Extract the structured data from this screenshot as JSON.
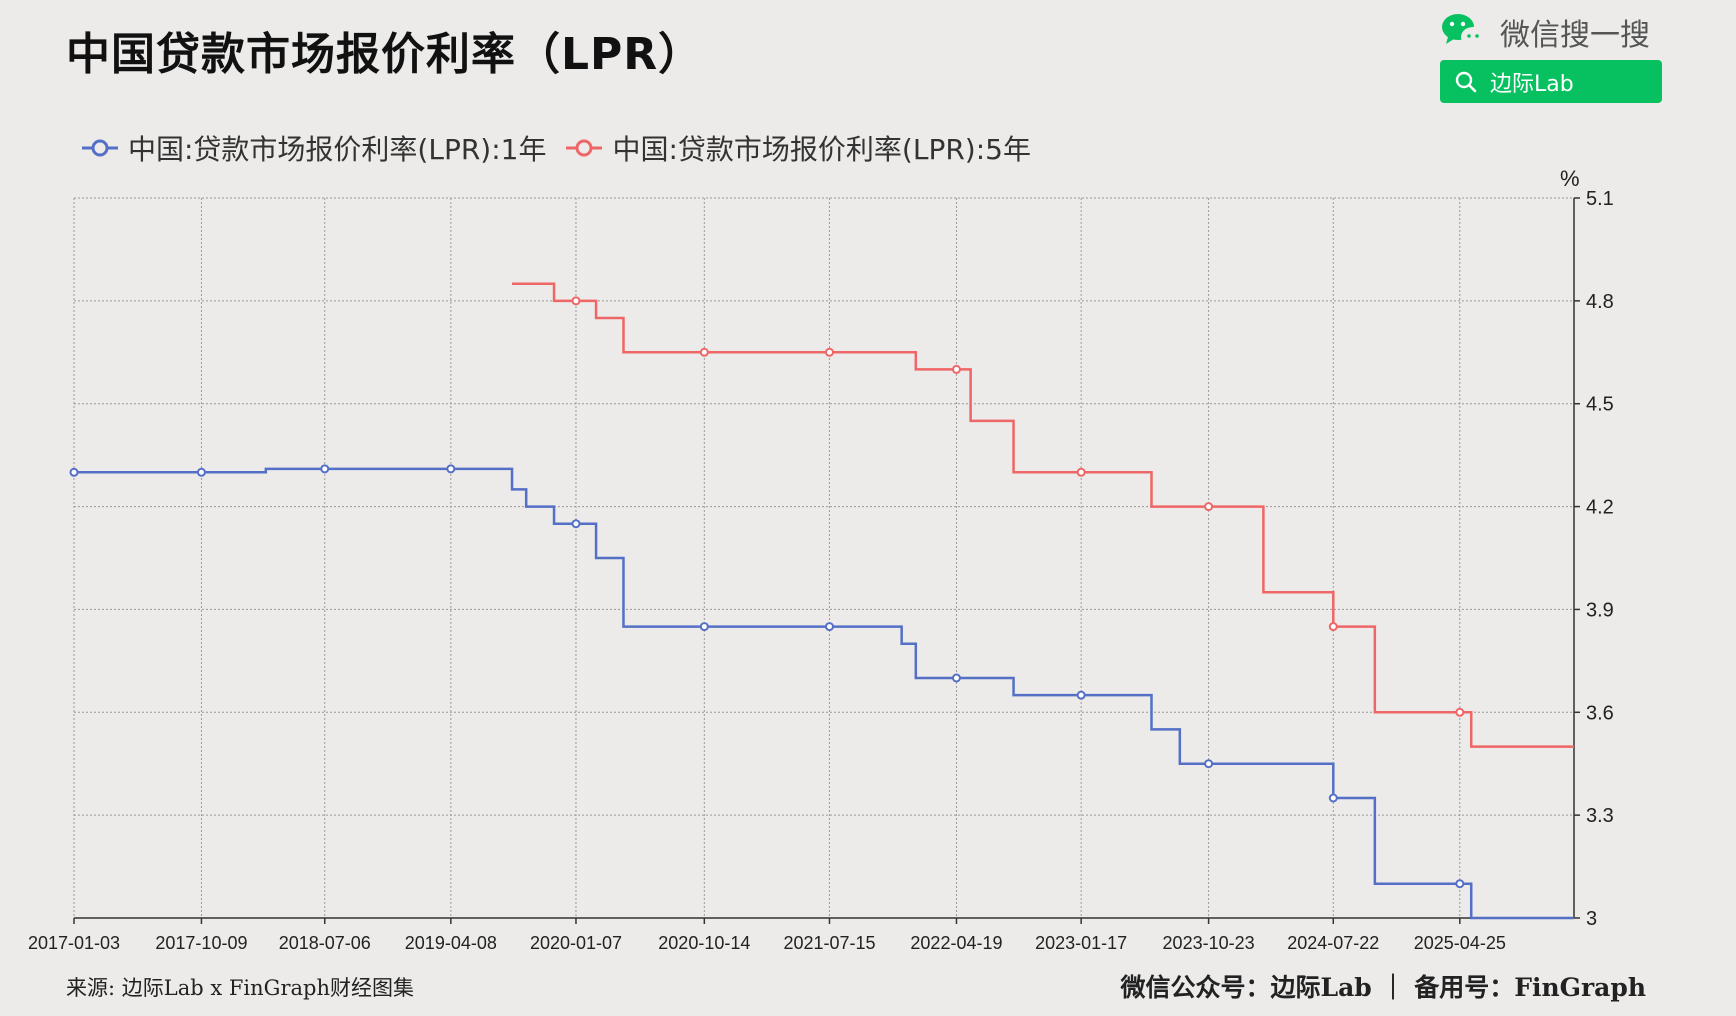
{
  "title": "中国贷款市场报价利率（LPR）",
  "brand": {
    "wechat_search_label": "微信搜一搜",
    "search_query": "边际Lab"
  },
  "footer": {
    "source": "来源: 边际Lab x FinGraph财经图集",
    "account": "微信公众号：边际Lab ｜ 备用号：FinGraph"
  },
  "colors": {
    "series_1y": "#5470c6",
    "series_5y": "#ee6666",
    "grid": "#999999",
    "wechat_green": "#07c160"
  },
  "chart_data": {
    "type": "line",
    "step": true,
    "yunit": "%",
    "ylim": [
      3.0,
      5.1
    ],
    "yticks": [
      3,
      3.3,
      3.6,
      3.9,
      4.2,
      4.5,
      4.8,
      5.1
    ],
    "x_tick_labels": [
      "2017-01-03",
      "2017-10-09",
      "2018-07-06",
      "2019-04-08",
      "2020-01-07",
      "2020-10-14",
      "2021-07-15",
      "2022-04-19",
      "2023-01-17",
      "2023-10-23",
      "2024-07-22",
      "2025-04-25"
    ],
    "x_range": [
      "2017-01-03",
      "2025-12-31"
    ],
    "grid": true,
    "legend_position": "top-left",
    "series": [
      {
        "name": "中国:贷款市场报价利率(LPR):1年",
        "color": "#5470c6",
        "steps": [
          [
            "2017-01-03",
            4.3
          ],
          [
            "2018-02-27",
            4.31
          ],
          [
            "2019-08-20",
            4.25
          ],
          [
            "2019-09-20",
            4.2
          ],
          [
            "2019-11-20",
            4.15
          ],
          [
            "2020-02-20",
            4.05
          ],
          [
            "2020-04-20",
            3.85
          ],
          [
            "2021-12-20",
            3.8
          ],
          [
            "2022-01-20",
            3.7
          ],
          [
            "2022-08-22",
            3.65
          ],
          [
            "2023-06-20",
            3.55
          ],
          [
            "2023-08-21",
            3.45
          ],
          [
            "2024-07-22",
            3.35
          ],
          [
            "2024-10-21",
            3.1
          ],
          [
            "2025-05-20",
            3.0
          ],
          [
            "2025-12-31",
            3.0
          ]
        ],
        "markers": [
          "2017-01-03",
          "2017-10-09",
          "2018-07-06",
          "2019-04-08",
          "2020-01-07",
          "2020-10-14",
          "2021-07-15",
          "2022-04-19",
          "2023-01-17",
          "2023-10-23",
          "2024-07-22",
          "2025-04-25"
        ]
      },
      {
        "name": "中国:贷款市场报价利率(LPR):5年",
        "color": "#ee6666",
        "steps": [
          [
            "2019-08-20",
            4.85
          ],
          [
            "2019-11-20",
            4.8
          ],
          [
            "2020-02-20",
            4.75
          ],
          [
            "2020-04-20",
            4.65
          ],
          [
            "2022-01-20",
            4.6
          ],
          [
            "2022-05-20",
            4.45
          ],
          [
            "2022-08-22",
            4.3
          ],
          [
            "2023-06-20",
            4.2
          ],
          [
            "2024-02-20",
            3.95
          ],
          [
            "2024-07-22",
            3.85
          ],
          [
            "2024-10-21",
            3.6
          ],
          [
            "2025-05-20",
            3.5
          ],
          [
            "2025-12-31",
            3.5
          ]
        ],
        "markers": [
          "2020-01-07",
          "2020-10-14",
          "2021-07-15",
          "2022-04-19",
          "2023-01-17",
          "2023-10-23",
          "2024-07-22",
          "2025-04-25"
        ]
      }
    ]
  }
}
